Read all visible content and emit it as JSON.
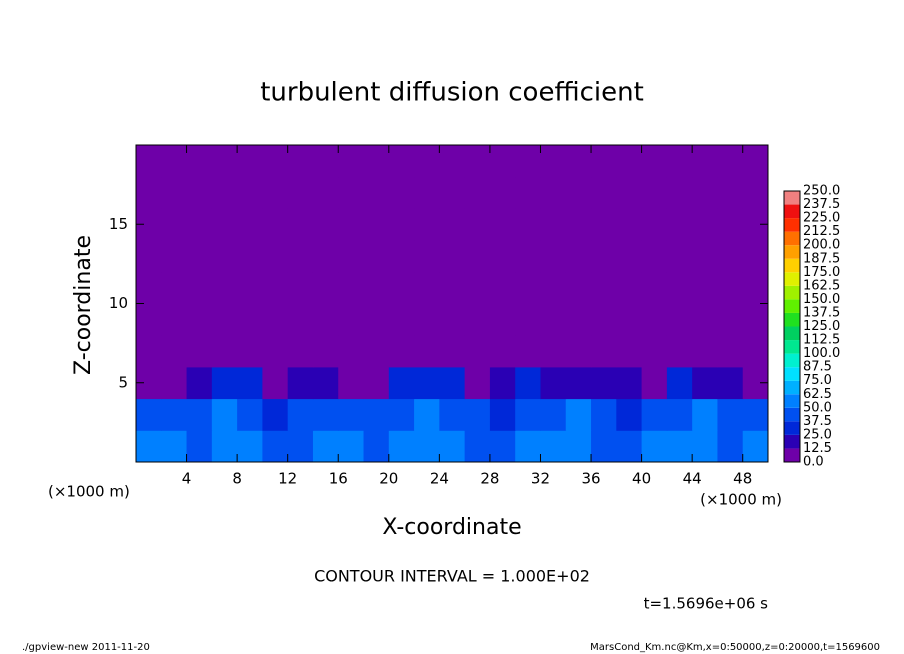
{
  "chart_data": {
    "type": "heatmap",
    "title": "turbulent diffusion coefficient",
    "x_label": "X-coordinate",
    "y_label": "Z-coordinate",
    "x_unit_label": "(×1000 m)",
    "annotation": "CONTOUR INTERVAL = 1.000E+02",
    "time_label": "t=1.5696e+06 s",
    "footer_left": "./gpview-new   2011-11-20",
    "footer_right": "MarsCond_Km.nc@Km,x=0:50000,z=0:20000,t=1569600",
    "xlim": [
      0,
      50
    ],
    "ylim": [
      0,
      20
    ],
    "xticks": [
      4,
      8,
      12,
      16,
      20,
      24,
      28,
      32,
      36,
      40,
      44,
      48
    ],
    "yticks": [
      5,
      10,
      15
    ],
    "x": [
      1,
      3,
      5,
      7,
      9,
      11,
      13,
      15,
      17,
      19,
      21,
      23,
      25,
      27,
      29,
      31,
      33,
      35,
      37,
      39,
      41,
      43,
      45,
      47,
      49
    ],
    "y": [
      1,
      3,
      5,
      7,
      9,
      11,
      13,
      15,
      17,
      19
    ],
    "z": [
      [
        55,
        60,
        45,
        50,
        62,
        48,
        40,
        58,
        52,
        45,
        50,
        60,
        55,
        48,
        42,
        58,
        50,
        62,
        45,
        40,
        52,
        56,
        60,
        48,
        55
      ],
      [
        45,
        40,
        38,
        50,
        42,
        35,
        45,
        48,
        40,
        38,
        45,
        52,
        46,
        40,
        35,
        48,
        42,
        50,
        38,
        36,
        45,
        48,
        52,
        40,
        46
      ],
      [
        8,
        12,
        20,
        25,
        28,
        10,
        15,
        22,
        6,
        12,
        28,
        30,
        25,
        8,
        18,
        25,
        20,
        15,
        22,
        18,
        10,
        25,
        20,
        15,
        8
      ],
      [
        0,
        0,
        0,
        0,
        0,
        0,
        0,
        0,
        0,
        0,
        0,
        0,
        0,
        0,
        0,
        0,
        0,
        0,
        0,
        0,
        0,
        0,
        0,
        0,
        0
      ],
      [
        0,
        0,
        0,
        0,
        0,
        0,
        0,
        0,
        0,
        0,
        0,
        0,
        0,
        0,
        0,
        0,
        0,
        0,
        0,
        0,
        0,
        0,
        0,
        0,
        0
      ],
      [
        0,
        0,
        0,
        0,
        0,
        0,
        0,
        0,
        0,
        0,
        0,
        0,
        0,
        0,
        0,
        0,
        0,
        0,
        0,
        0,
        0,
        0,
        0,
        0,
        0
      ],
      [
        0,
        0,
        0,
        0,
        0,
        0,
        0,
        0,
        0,
        0,
        0,
        0,
        0,
        0,
        0,
        0,
        0,
        0,
        0,
        0,
        0,
        0,
        0,
        0,
        0
      ],
      [
        0,
        0,
        0,
        0,
        0,
        0,
        0,
        0,
        0,
        0,
        0,
        0,
        0,
        0,
        0,
        0,
        0,
        0,
        0,
        0,
        0,
        0,
        0,
        0,
        0
      ],
      [
        0,
        0,
        0,
        0,
        0,
        0,
        0,
        0,
        0,
        0,
        0,
        0,
        0,
        0,
        0,
        0,
        0,
        0,
        0,
        0,
        0,
        0,
        0,
        0,
        0
      ],
      [
        0,
        0,
        0,
        0,
        0,
        0,
        0,
        0,
        0,
        0,
        0,
        0,
        0,
        0,
        0,
        0,
        0,
        0,
        0,
        0,
        0,
        0,
        0,
        0,
        0
      ]
    ],
    "levels": [
      {
        "value": 0,
        "label": "0.0"
      },
      {
        "value": 12.5,
        "label": "12.5"
      },
      {
        "value": 25,
        "label": "25.0"
      },
      {
        "value": 37.5,
        "label": "37.5"
      },
      {
        "value": 50,
        "label": "50.0"
      },
      {
        "value": 62.5,
        "label": "62.5"
      },
      {
        "value": 75,
        "label": "75.0"
      },
      {
        "value": 87.5,
        "label": "87.5"
      },
      {
        "value": 100,
        "label": "100.0"
      },
      {
        "value": 112.5,
        "label": "112.5"
      },
      {
        "value": 125,
        "label": "125.0"
      },
      {
        "value": 137.5,
        "label": "137.5"
      },
      {
        "value": 150,
        "label": "150.0"
      },
      {
        "value": 162.5,
        "label": "162.5"
      },
      {
        "value": 175,
        "label": "175.0"
      },
      {
        "value": 187.5,
        "label": "187.5"
      },
      {
        "value": 200,
        "label": "200.0"
      },
      {
        "value": 212.5,
        "label": "212.5"
      },
      {
        "value": 225,
        "label": "225.0"
      },
      {
        "value": 237.5,
        "label": "237.5"
      },
      {
        "value": 250,
        "label": "250.0"
      }
    ],
    "colors": [
      "#6e00a8",
      "#2a00b4",
      "#0028d8",
      "#0050f0",
      "#0080ff",
      "#00b0ff",
      "#00e0ff",
      "#00f0d0",
      "#00e890",
      "#00d060",
      "#20e020",
      "#60f000",
      "#a0f000",
      "#e0f000",
      "#ffd000",
      "#ffa000",
      "#ff7000",
      "#ff3000",
      "#f01010",
      "#f08080"
    ]
  }
}
